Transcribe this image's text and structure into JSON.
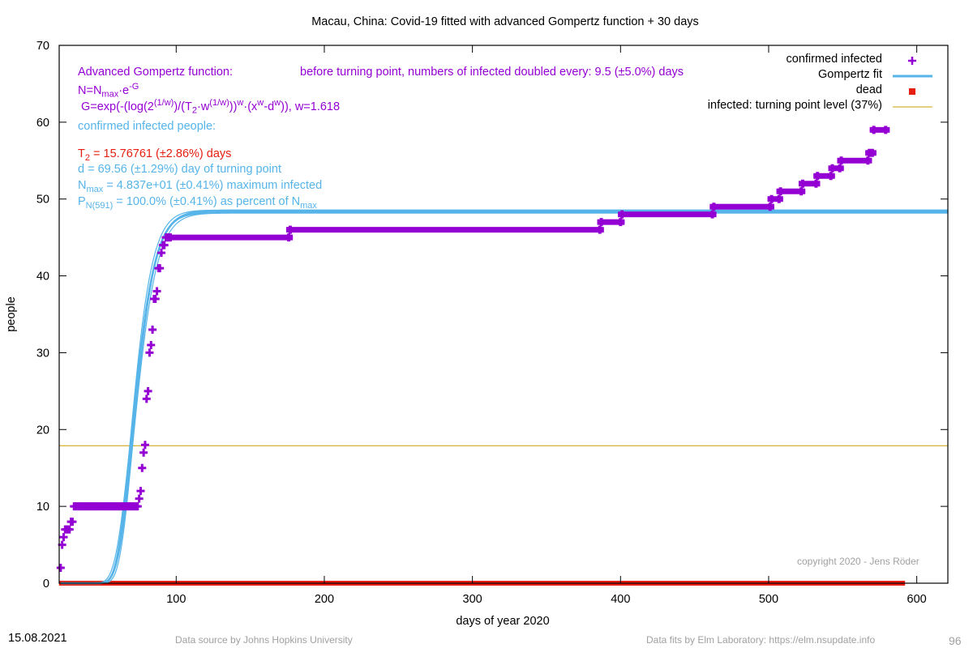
{
  "chart_data": {
    "type": "scatter",
    "title": "Macau,  China: Covid-19 fitted with advanced Gompertz function + 30 days",
    "xlabel": "days of year 2020",
    "ylabel": "people",
    "xlim": [
      21,
      621
    ],
    "ylim": [
      0,
      70
    ],
    "x_ticks": [
      "100",
      "200",
      "300",
      "400",
      "500",
      "600"
    ],
    "y_ticks": [
      "0",
      "10",
      "20",
      "30",
      "40",
      "50",
      "60",
      "70"
    ],
    "grid": false,
    "legend_position": "top-right",
    "legend": {
      "confirmed": "confirmed infected",
      "fit": "Gompertz fit",
      "dead": "dead",
      "turning": "infected: turning point level (37%)"
    },
    "colors": {
      "confirmed": "#9400d3",
      "fit": "#56b4e9",
      "dead": "#e51e10",
      "turning": "#c8a000"
    },
    "fit_params": {
      "Nmax": 48.37,
      "T2": 15.76761,
      "d": 69.56,
      "w": 1.618,
      "x_end": 621
    },
    "turning_point_level": 17.9,
    "confirmed_segments": [
      [
        22,
        2
      ],
      [
        23,
        5
      ],
      [
        24,
        6
      ],
      [
        25,
        7
      ],
      [
        26,
        7
      ],
      [
        27,
        7
      ],
      [
        28,
        7
      ],
      [
        29,
        8
      ],
      [
        30,
        8
      ],
      [
        31,
        10
      ],
      [
        32,
        10
      ],
      [
        33,
        10
      ],
      [
        34,
        10
      ],
      [
        35,
        10
      ],
      [
        36,
        10
      ],
      [
        37,
        10
      ],
      [
        38,
        10
      ],
      [
        39,
        10
      ],
      [
        40,
        10
      ],
      [
        41,
        10
      ],
      [
        42,
        10
      ],
      [
        43,
        10
      ],
      [
        44,
        10
      ],
      [
        45,
        10
      ],
      [
        46,
        10
      ],
      [
        47,
        10
      ],
      [
        48,
        10
      ],
      [
        49,
        10
      ],
      [
        50,
        10
      ],
      [
        51,
        10
      ],
      [
        52,
        10
      ],
      [
        53,
        10
      ],
      [
        54,
        10
      ],
      [
        55,
        10
      ],
      [
        56,
        10
      ],
      [
        57,
        10
      ],
      [
        58,
        10
      ],
      [
        59,
        10
      ],
      [
        60,
        10
      ],
      [
        61,
        10
      ],
      [
        62,
        10
      ],
      [
        63,
        10
      ],
      [
        64,
        10
      ],
      [
        65,
        10
      ],
      [
        66,
        10
      ],
      [
        67,
        10
      ],
      [
        68,
        10
      ],
      [
        69,
        10
      ],
      [
        70,
        10
      ],
      [
        71,
        10
      ],
      [
        72,
        10
      ],
      [
        73,
        10
      ],
      [
        74,
        10
      ],
      [
        75,
        11
      ],
      [
        76,
        12
      ],
      [
        77,
        15
      ],
      [
        78,
        17
      ],
      [
        79,
        18
      ],
      [
        80,
        24
      ],
      [
        81,
        25
      ],
      [
        82,
        30
      ],
      [
        83,
        31
      ],
      [
        84,
        33
      ],
      [
        85,
        37
      ],
      [
        86,
        37
      ],
      [
        87,
        38
      ],
      [
        88,
        41
      ],
      [
        89,
        41
      ],
      [
        90,
        43
      ],
      [
        91,
        44
      ],
      [
        92,
        44
      ],
      [
        93,
        45
      ],
      [
        94,
        45
      ],
      [
        95,
        45
      ],
      [
        96,
        45,
        176
      ],
      [
        177,
        46,
        386
      ],
      [
        387,
        47,
        400
      ],
      [
        401,
        48,
        462
      ],
      [
        463,
        49,
        501
      ],
      [
        502,
        50,
        507
      ],
      [
        508,
        51,
        522
      ],
      [
        523,
        52,
        532
      ],
      [
        533,
        53,
        542
      ],
      [
        543,
        54,
        548
      ],
      [
        549,
        55,
        567
      ],
      [
        568,
        56,
        570
      ],
      [
        571,
        59,
        579
      ]
    ],
    "dead_range": [
      22,
      591
    ]
  },
  "title": "Macau,  China: Covid-19 fitted with advanced Gompertz function + 30 days",
  "annotations": {
    "formula_title": "Advanced Gompertz function:",
    "formula_n": "N=N",
    "formula_n_sub": "max",
    "formula_n_rest": "·e",
    "formula_n_sup": "-G",
    "formula_g1": "G=exp(-(log(2",
    "formula_g_sup1": "(1/w)",
    "formula_g2": ")/(T",
    "formula_g_sub": "2",
    "formula_g3": "·w",
    "formula_g_sup2": "(1/w)",
    "formula_g4": "))",
    "formula_g_sup3": "w",
    "formula_g5": "·(x",
    "formula_g_sup4": "w",
    "formula_g6": "-d",
    "formula_g_sup5": "w",
    "formula_g7": ")), w=1.618",
    "doubling": "before turning point, numbers of infected doubled every: 9.5 (±5.0%) days",
    "confirmed_header": "confirmed infected people:",
    "t2_a": "T",
    "t2_sub": "2",
    "t2_b": " = 15.76761 (±2.86%) days",
    "d_line": "d = 69.56 (±1.29%) day of turning point",
    "nmax_a": "N",
    "nmax_sub": "max",
    "nmax_b": " = 4.837e+01 (±0.41%) maximum infected",
    "p_a": "P",
    "p_sub": "N(591)",
    "p_b": " = 100.0% (±0.41%) as percent of N",
    "p_sub2": "max",
    "copyright": "copyright 2020 - Jens Röder"
  },
  "footer": {
    "date": "15.08.2021",
    "source": "Data source by Johns Hopkins University",
    "fits": "Data fits by Elm Laboratory: https://elm.nsupdate.info",
    "page_num": "96"
  }
}
